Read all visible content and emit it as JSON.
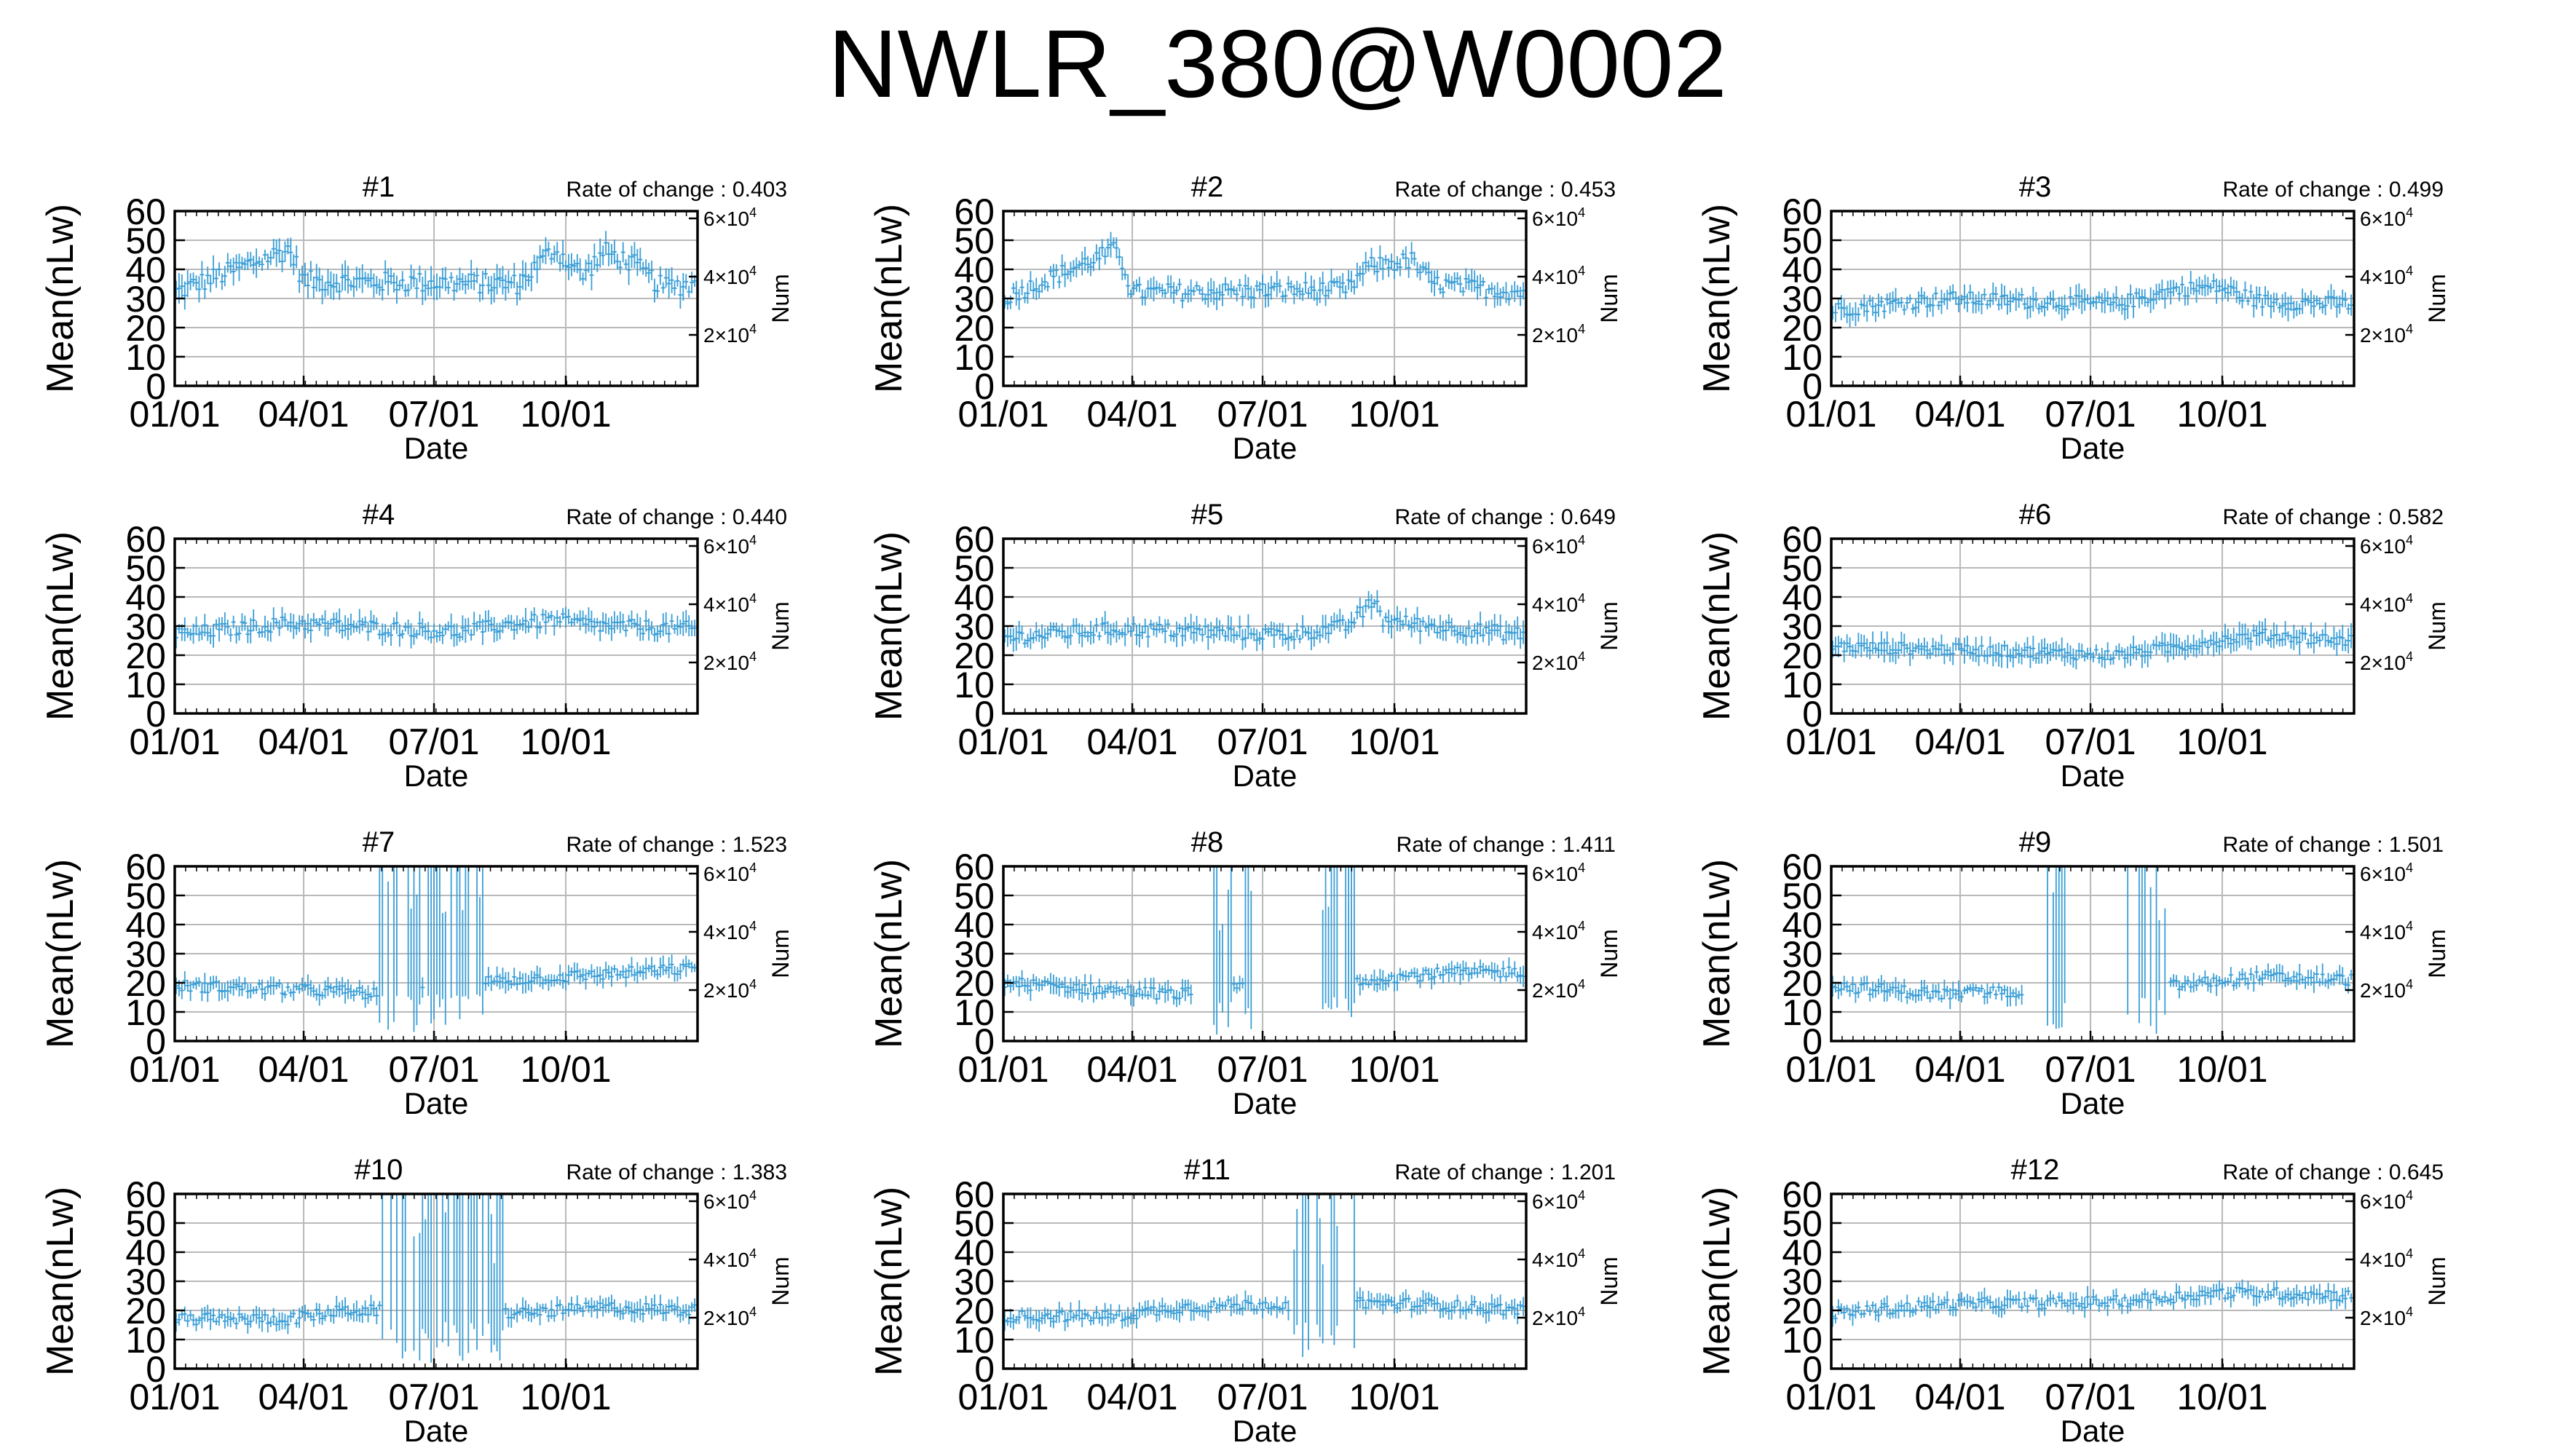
{
  "title": "NWLR_380@W0002",
  "colors": {
    "series": "#3a9ed6",
    "grid": "#b9b9b9",
    "axis": "#000000"
  },
  "shared_axes": {
    "xlabel": "Date",
    "ylabel": "Mean(nLw)",
    "y2label": "Num",
    "x_ticks": [
      "01/01",
      "04/01",
      "07/01",
      "10/01"
    ],
    "y_ticks": [
      "0",
      "10",
      "20",
      "30",
      "40",
      "50",
      "60"
    ],
    "y2_ticks": [
      {
        "base": "6×10",
        "exp": "4"
      },
      {
        "base": "4×10",
        "exp": "4"
      },
      {
        "base": "2×10",
        "exp": "4"
      }
    ],
    "rate_label": "Rate of change : "
  },
  "chart_data": [
    {
      "type": "line",
      "title": "#1",
      "rate_value": "0.403",
      "ylim": [
        0,
        60
      ],
      "grid": true,
      "base": 34,
      "noise": 3.5,
      "spread": 3.5,
      "points": [
        [
          0,
          32
        ],
        [
          80,
          47
        ],
        [
          90,
          36
        ],
        [
          240,
          35
        ],
        [
          265,
          47
        ],
        [
          285,
          38
        ],
        [
          300,
          46
        ],
        [
          320,
          42
        ],
        [
          340,
          34
        ],
        [
          365,
          35
        ]
      ],
      "spikes": [],
      "gap": []
    },
    {
      "type": "line",
      "title": "#2",
      "rate_value": "0.453",
      "ylim": [
        0,
        60
      ],
      "grid": true,
      "base": 31,
      "noise": 3,
      "spread": 3,
      "points": [
        [
          0,
          30
        ],
        [
          80,
          47
        ],
        [
          90,
          32
        ],
        [
          240,
          33
        ],
        [
          255,
          41
        ],
        [
          285,
          43
        ],
        [
          300,
          35
        ],
        [
          365,
          32
        ]
      ],
      "spikes": [],
      "gap": []
    },
    {
      "type": "line",
      "title": "#3",
      "rate_value": "0.499",
      "ylim": [
        0,
        60
      ],
      "grid": true,
      "base": 27,
      "noise": 2.5,
      "spread": 3,
      "points": [
        [
          0,
          26
        ],
        [
          80,
          30
        ],
        [
          200,
          28
        ],
        [
          240,
          33
        ],
        [
          270,
          34
        ],
        [
          300,
          29
        ],
        [
          365,
          28
        ]
      ],
      "spikes": [],
      "gap": []
    },
    {
      "type": "line",
      "title": "#4",
      "rate_value": "0.440",
      "ylim": [
        0,
        60
      ],
      "grid": true,
      "base": 28,
      "noise": 2.5,
      "spread": 3,
      "points": [
        [
          0,
          27
        ],
        [
          80,
          31
        ],
        [
          200,
          28
        ],
        [
          240,
          31
        ],
        [
          265,
          32
        ],
        [
          300,
          30
        ],
        [
          365,
          29
        ]
      ],
      "spikes": [],
      "gap": []
    },
    {
      "type": "line",
      "title": "#5",
      "rate_value": "0.649",
      "ylim": [
        0,
        60
      ],
      "grid": true,
      "base": 27,
      "noise": 2.5,
      "spread": 3,
      "points": [
        [
          0,
          26
        ],
        [
          80,
          29
        ],
        [
          200,
          27
        ],
        [
          240,
          30
        ],
        [
          260,
          39
        ],
        [
          265,
          32
        ],
        [
          300,
          30
        ],
        [
          365,
          27
        ]
      ],
      "spikes": [],
      "gap": []
    },
    {
      "type": "line",
      "title": "#6",
      "rate_value": "0.582",
      "ylim": [
        0,
        60
      ],
      "grid": true,
      "base": 21,
      "noise": 2,
      "spread": 3,
      "points": [
        [
          0,
          23
        ],
        [
          80,
          22
        ],
        [
          200,
          20
        ],
        [
          270,
          25
        ],
        [
          300,
          27
        ],
        [
          365,
          25
        ]
      ],
      "spikes": [],
      "gap": []
    },
    {
      "type": "line",
      "title": "#7",
      "rate_value": "1.523",
      "ylim": [
        0,
        60
      ],
      "grid": true,
      "base": 19,
      "noise": 2,
      "spread": 2.5,
      "points": [
        [
          0,
          19
        ],
        [
          120,
          17
        ],
        [
          140,
          16
        ],
        [
          200,
          20
        ],
        [
          270,
          22
        ],
        [
          365,
          25
        ]
      ],
      "spikes": [
        [
          142,
          172
        ],
        [
          175,
          215
        ]
      ],
      "gap": []
    },
    {
      "type": "line",
      "title": "#8",
      "rate_value": "1.411",
      "ylim": [
        0,
        60
      ],
      "grid": true,
      "base": 19,
      "noise": 2,
      "spread": 2.5,
      "points": [
        [
          0,
          20
        ],
        [
          120,
          16
        ],
        [
          140,
          17
        ],
        [
          250,
          21
        ],
        [
          300,
          23
        ],
        [
          365,
          24
        ]
      ],
      "spikes": [
        [
          145,
          160
        ],
        [
          168,
          173
        ],
        [
          220,
          245
        ]
      ],
      "gap": [
        [
          132,
          145
        ],
        [
          175,
          220
        ]
      ]
    },
    {
      "type": "line",
      "title": "#9",
      "rate_value": "1.501",
      "ylim": [
        0,
        60
      ],
      "grid": true,
      "base": 19,
      "noise": 2,
      "spread": 2.5,
      "points": [
        [
          0,
          19
        ],
        [
          80,
          16
        ],
        [
          120,
          17
        ],
        [
          240,
          19
        ],
        [
          300,
          22
        ],
        [
          365,
          21
        ]
      ],
      "spikes": [
        [
          150,
          165
        ],
        [
          205,
          235
        ]
      ],
      "gap": [
        [
          135,
          150
        ],
        [
          165,
          205
        ]
      ]
    },
    {
      "type": "line",
      "title": "#10",
      "rate_value": "1.383",
      "ylim": [
        0,
        60
      ],
      "grid": true,
      "base": 18,
      "noise": 2,
      "spread": 2.5,
      "points": [
        [
          0,
          17
        ],
        [
          80,
          17
        ],
        [
          120,
          20
        ],
        [
          240,
          19
        ],
        [
          300,
          21
        ],
        [
          365,
          20
        ]
      ],
      "spikes": [
        [
          145,
          230
        ]
      ],
      "gap": []
    },
    {
      "type": "line",
      "title": "#11",
      "rate_value": "1.201",
      "ylim": [
        0,
        60
      ],
      "grid": true,
      "base": 19,
      "noise": 2,
      "spread": 2.5,
      "points": [
        [
          0,
          18
        ],
        [
          80,
          18
        ],
        [
          120,
          21
        ],
        [
          180,
          22
        ],
        [
          200,
          22
        ],
        [
          240,
          23
        ],
        [
          300,
          22
        ],
        [
          365,
          20
        ]
      ],
      "spikes": [
        [
          200,
          245
        ]
      ],
      "gap": []
    },
    {
      "type": "line",
      "title": "#12",
      "rate_value": "0.645",
      "ylim": [
        0,
        60
      ],
      "grid": true,
      "base": 21,
      "noise": 2,
      "spread": 2.5,
      "points": [
        [
          0,
          19
        ],
        [
          80,
          22
        ],
        [
          200,
          23
        ],
        [
          270,
          26
        ],
        [
          300,
          26
        ],
        [
          365,
          25
        ]
      ],
      "spikes": [],
      "gap": []
    }
  ]
}
